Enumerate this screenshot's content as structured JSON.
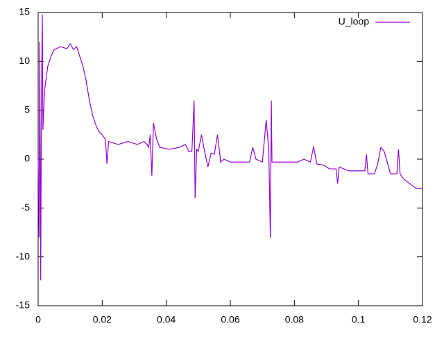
{
  "chart_data": {
    "type": "line",
    "x": [
      0,
      0.0003,
      0.0005,
      0.0008,
      0.001,
      0.0013,
      0.0015,
      0.002,
      0.003,
      0.004,
      0.005,
      0.007,
      0.009,
      0.01,
      0.011,
      0.012,
      0.013,
      0.014,
      0.015,
      0.016,
      0.017,
      0.018,
      0.019,
      0.02,
      0.021,
      0.0215,
      0.022,
      0.025,
      0.028,
      0.031,
      0.033,
      0.034,
      0.0345,
      0.035,
      0.0355,
      0.036,
      0.037,
      0.038,
      0.041,
      0.044,
      0.046,
      0.047,
      0.048,
      0.0487,
      0.049,
      0.0495,
      0.05,
      0.051,
      0.052,
      0.053,
      0.054,
      0.055,
      0.056,
      0.057,
      0.058,
      0.06,
      0.063,
      0.066,
      0.067,
      0.068,
      0.07,
      0.0712,
      0.072,
      0.0725,
      0.0728,
      0.073,
      0.075,
      0.078,
      0.081,
      0.083,
      0.085,
      0.086,
      0.087,
      0.089,
      0.091,
      0.093,
      0.0935,
      0.094,
      0.097,
      0.1,
      0.102,
      0.1025,
      0.103,
      0.105,
      0.106,
      0.107,
      0.108,
      0.109,
      0.11,
      0.112,
      0.1125,
      0.113,
      0.114,
      0.116,
      0.118,
      0.12
    ],
    "series": [
      {
        "name": "U_loop",
        "color": "#9400d3",
        "values": [
          0,
          -8,
          12,
          -12.4,
          5,
          14.8,
          3,
          7,
          9.5,
          10.5,
          11.2,
          11.5,
          11.3,
          11.8,
          11.2,
          11.5,
          10.5,
          9.5,
          8,
          6,
          4.5,
          3.5,
          2.8,
          2.5,
          2,
          -0.5,
          1.8,
          1.5,
          1.8,
          1.5,
          1.8,
          1.5,
          1.2,
          2.5,
          -1.7,
          3.7,
          2,
          1.2,
          1,
          1.2,
          1.5,
          0.8,
          0.8,
          6,
          -4,
          1,
          0.8,
          2.5,
          0.7,
          -0.8,
          0.6,
          0.5,
          2.5,
          -0.3,
          0,
          -0.3,
          -0.3,
          -0.3,
          1.2,
          0,
          -0.3,
          4,
          1,
          -8.1,
          6,
          -0.3,
          -0.3,
          -0.3,
          -0.3,
          0,
          -0.3,
          1.3,
          -0.5,
          -0.6,
          -1,
          -1,
          -2.5,
          -0.8,
          -1.2,
          -1.2,
          -1.2,
          0.5,
          -1.5,
          -1.5,
          -0.5,
          1.2,
          0.8,
          -0.3,
          -1.5,
          -1.5,
          1,
          -1.5,
          -2,
          -2.5,
          -3,
          -3
        ]
      }
    ],
    "xlim": [
      0,
      0.12
    ],
    "ylim": [
      -15,
      15
    ],
    "xticks": [
      0,
      0.02,
      0.04,
      0.06,
      0.08,
      0.1,
      0.12
    ],
    "yticks": [
      -15,
      -10,
      -5,
      0,
      5,
      10,
      15
    ]
  }
}
